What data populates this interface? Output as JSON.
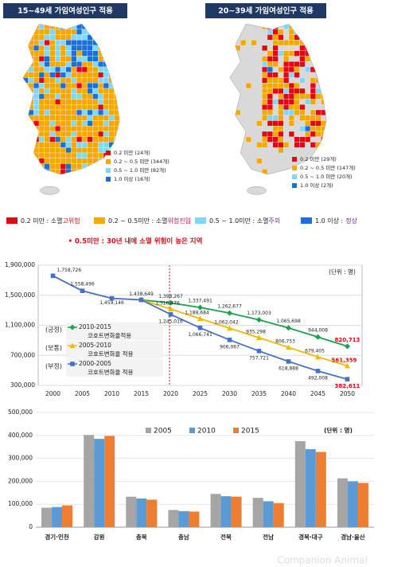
{
  "maps": [
    {
      "title": "15~49세 가임여성인구 적용",
      "legend": [
        {
          "label": "0.2 미만 (24개)",
          "color": "#e30613"
        },
        {
          "label": "0.2 ~ 0.5 미만 (344개)",
          "color": "#f5a800"
        },
        {
          "label": "0.5 ~ 1.0 미만 (82개)",
          "color": "#7fd8f5"
        },
        {
          "label": "1.0 이상 (16개)",
          "color": "#1a6fd8"
        }
      ]
    },
    {
      "title": "20~39세 가임여성인구 적용",
      "legend": [
        {
          "label": "0.2 미만 (29개)",
          "color": "#e30613"
        },
        {
          "label": "0.2 ~ 0.5 미만 (147개)",
          "color": "#f5a800"
        },
        {
          "label": "0.5 ~ 1.0 미만 (20개)",
          "color": "#7fd8f5"
        },
        {
          "label": "1.0 이상 (2개)",
          "color": "#1a6fd8"
        }
      ]
    }
  ],
  "index_legend": [
    {
      "range": "0.2 미만 : 소멸",
      "status": "고위험",
      "color": "#e30613",
      "status_color": "#e30613"
    },
    {
      "range": "0.2 ~ 0.5미만 : 소멸",
      "status": "위험진입",
      "color": "#f5a800",
      "status_color": "#c0185c"
    },
    {
      "range": "0.5 ~ 1.0미만 : 소멸",
      "status": "주의",
      "color": "#7fd8f5",
      "status_color": "#6a2c91"
    },
    {
      "range": "1.0 이상 :",
      "status": "정상",
      "color": "#1a6fd8",
      "status_color": "#6a2c91"
    }
  ],
  "note": "• 0.5미만 : 30년 내에 소멸 위험이 높은 지역",
  "chart_data": [
    {
      "type": "line",
      "unit": "(단위 : 명)",
      "categories": [
        "2000",
        "2005",
        "2010",
        "2015",
        "2020",
        "2025",
        "2030",
        "2035",
        "2040",
        "2045",
        "2050"
      ],
      "ylim": [
        300000,
        1900000
      ],
      "yticks": [
        {
          "value": 300000,
          "label": "300,000"
        },
        {
          "value": 700000,
          "label": "700,000"
        },
        {
          "value": 1100000,
          "label": "1,100,000"
        },
        {
          "value": 1500000,
          "label": "1,500,000"
        },
        {
          "value": 1900000,
          "label": "1,900,000"
        }
      ],
      "series": [
        {
          "name": "2010-2015",
          "note": "코호트변화율적용",
          "scenario": "(긍정)",
          "scenario_color": "#e30613",
          "color": "#1aa34a",
          "marker": "diamond",
          "values": [
            null,
            null,
            null,
            1438649,
            1398267,
            1337491,
            1262677,
            1173003,
            1065698,
            944008,
            820713
          ],
          "value_labels": [
            null,
            null,
            null,
            null,
            "1,398,267",
            "1,337,491",
            "1,262,677",
            "1,173,003",
            "1,065,698",
            "944,008",
            "820,713"
          ]
        },
        {
          "name": "2005-2010",
          "note": "코호트변화율 적용",
          "scenario": "(보통)",
          "scenario_color": "#1f3864",
          "color": "#f5b800",
          "marker": "triangle",
          "values": [
            null,
            null,
            null,
            1438649,
            1316476,
            1188684,
            1062042,
            935298,
            806753,
            679405,
            561359
          ],
          "value_labels": [
            null,
            null,
            null,
            null,
            "1,316,476",
            "1,188,684",
            "1,062,042",
            "935,298",
            "806,753",
            "679,405",
            "561,359"
          ]
        },
        {
          "name": "2000-2005",
          "note": "코호트변화율 적용",
          "scenario": "(부정)",
          "scenario_color": "#2e75b6",
          "color": "#4472c4",
          "marker": "square",
          "values": [
            1758726,
            1558496,
            1459146,
            1438649,
            1245016,
            1066741,
            906067,
            757721,
            618888,
            492008,
            382611
          ],
          "value_labels": [
            "1,758,726",
            "1,558,496",
            "1,459,146",
            "1,438,649",
            "1,245,016",
            "1,066,741",
            "906,067",
            "757,721",
            "618,888",
            "492,008",
            "382,611"
          ]
        }
      ]
    },
    {
      "type": "bar",
      "unit": "(단위 : 명)",
      "categories": [
        "경기·인천",
        "강원",
        "충북",
        "충남",
        "전북",
        "전남",
        "경북·대구",
        "경남·울산"
      ],
      "ylim": [
        0,
        500000
      ],
      "yticks": [
        0,
        {
          "value": 100000,
          "label": "100,000"
        },
        {
          "value": 200000,
          "label": "200,000"
        },
        {
          "value": 300000,
          "label": "300,000"
        },
        {
          "value": 400000,
          "label": "400,000"
        },
        {
          "value": 500000,
          "label": "500,000"
        }
      ],
      "series": [
        {
          "name": "2005",
          "color": "#a5a5a5",
          "values": [
            85000,
            402000,
            133000,
            75000,
            145000,
            128000,
            375000,
            213000
          ]
        },
        {
          "name": "2010",
          "color": "#5b9bd5",
          "values": [
            88000,
            385000,
            125000,
            70000,
            135000,
            113000,
            340000,
            200000
          ]
        },
        {
          "name": "2015",
          "color": "#ed7d31",
          "values": [
            95000,
            398000,
            120000,
            68000,
            133000,
            105000,
            328000,
            193000
          ]
        }
      ]
    }
  ],
  "watermark": "Companion Animal"
}
